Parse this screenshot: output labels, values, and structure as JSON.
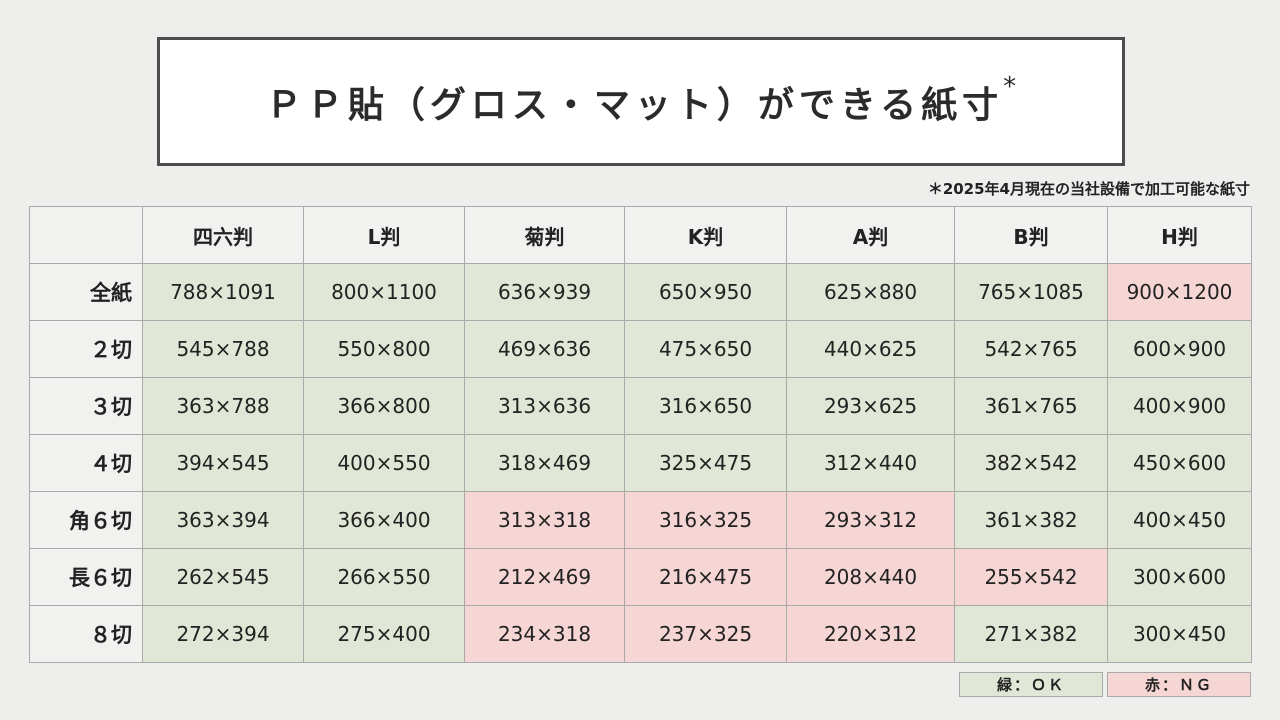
{
  "title": {
    "text": "ＰＰ貼（グロス・マット）ができる紙寸",
    "mark": "*"
  },
  "note": "＊2025年4月現在の当社設備で加工可能な紙寸",
  "table": {
    "corner": "",
    "columns": [
      "四六判",
      "L判",
      "菊判",
      "K判",
      "A判",
      "B判",
      "H判"
    ],
    "rows": [
      {
        "label": "全紙",
        "cells": [
          {
            "value": "788×1091",
            "status": "ok"
          },
          {
            "value": "800×1100",
            "status": "ok"
          },
          {
            "value": "636×939",
            "status": "ok"
          },
          {
            "value": "650×950",
            "status": "ok"
          },
          {
            "value": "625×880",
            "status": "ok"
          },
          {
            "value": "765×1085",
            "status": "ok"
          },
          {
            "value": "900×1200",
            "status": "ng"
          }
        ]
      },
      {
        "label": "２切",
        "cells": [
          {
            "value": "545×788",
            "status": "ok"
          },
          {
            "value": "550×800",
            "status": "ok"
          },
          {
            "value": "469×636",
            "status": "ok"
          },
          {
            "value": "475×650",
            "status": "ok"
          },
          {
            "value": "440×625",
            "status": "ok"
          },
          {
            "value": "542×765",
            "status": "ok"
          },
          {
            "value": "600×900",
            "status": "ok"
          }
        ]
      },
      {
        "label": "３切",
        "cells": [
          {
            "value": "363×788",
            "status": "ok"
          },
          {
            "value": "366×800",
            "status": "ok"
          },
          {
            "value": "313×636",
            "status": "ok"
          },
          {
            "value": "316×650",
            "status": "ok"
          },
          {
            "value": "293×625",
            "status": "ok"
          },
          {
            "value": "361×765",
            "status": "ok"
          },
          {
            "value": "400×900",
            "status": "ok"
          }
        ]
      },
      {
        "label": "４切",
        "cells": [
          {
            "value": "394×545",
            "status": "ok"
          },
          {
            "value": "400×550",
            "status": "ok"
          },
          {
            "value": "318×469",
            "status": "ok"
          },
          {
            "value": "325×475",
            "status": "ok"
          },
          {
            "value": "312×440",
            "status": "ok"
          },
          {
            "value": "382×542",
            "status": "ok"
          },
          {
            "value": "450×600",
            "status": "ok"
          }
        ]
      },
      {
        "label": "角６切",
        "cells": [
          {
            "value": "363×394",
            "status": "ok"
          },
          {
            "value": "366×400",
            "status": "ok"
          },
          {
            "value": "313×318",
            "status": "ng"
          },
          {
            "value": "316×325",
            "status": "ng"
          },
          {
            "value": "293×312",
            "status": "ng"
          },
          {
            "value": "361×382",
            "status": "ok"
          },
          {
            "value": "400×450",
            "status": "ok"
          }
        ]
      },
      {
        "label": "長６切",
        "cells": [
          {
            "value": "262×545",
            "status": "ok"
          },
          {
            "value": "266×550",
            "status": "ok"
          },
          {
            "value": "212×469",
            "status": "ng"
          },
          {
            "value": "216×475",
            "status": "ng"
          },
          {
            "value": "208×440",
            "status": "ng"
          },
          {
            "value": "255×542",
            "status": "ng"
          },
          {
            "value": "300×600",
            "status": "ok"
          }
        ]
      },
      {
        "label": "８切",
        "cells": [
          {
            "value": "272×394",
            "status": "ok"
          },
          {
            "value": "275×400",
            "status": "ok"
          },
          {
            "value": "234×318",
            "status": "ng"
          },
          {
            "value": "237×325",
            "status": "ng"
          },
          {
            "value": "220×312",
            "status": "ng"
          },
          {
            "value": "271×382",
            "status": "ok"
          },
          {
            "value": "300×450",
            "status": "ok"
          }
        ]
      }
    ]
  },
  "legend": {
    "ok": "緑：ＯＫ",
    "ng": "赤：ＮＧ"
  },
  "colors": {
    "ok": "#e1e7d6",
    "ng": "#f6d5d5",
    "header": "#f1f1f0",
    "background": "#eeeeed",
    "title_border": "#4d4d4d"
  }
}
